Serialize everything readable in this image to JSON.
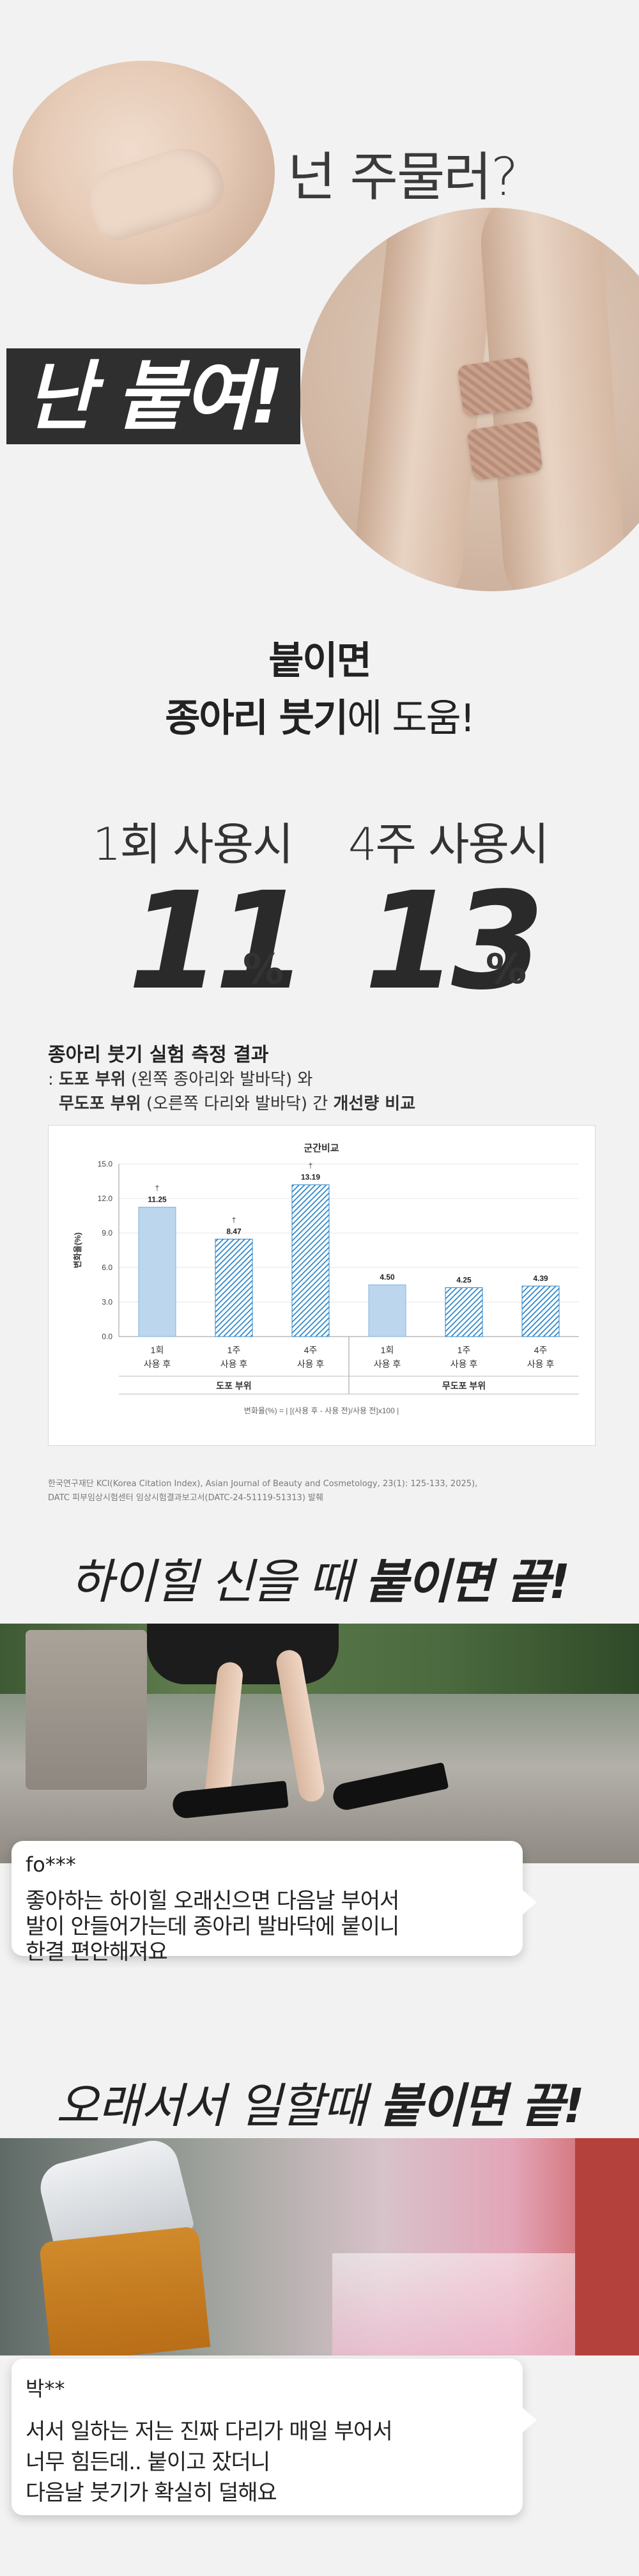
{
  "hero": {
    "question": "넌 주물러?",
    "answer": "난 붙여!"
  },
  "headline": {
    "line1": "붙이면",
    "line2_bold": "종아리 붓기",
    "line2_light": "에 도움!"
  },
  "stats": [
    {
      "label": "1회 사용시",
      "value": "11",
      "unit": "%"
    },
    {
      "label": "4주 사용시",
      "value": "13",
      "unit": "%"
    }
  ],
  "chart_section": {
    "title": "종아리 붓기 실험 측정 결과",
    "sub1_prefix": ": ",
    "sub1_bold": "도포 부위",
    "sub1_rest": " (왼쪽 종아리와 발바닥) 와",
    "sub2_bold": "무도포 부위",
    "sub2_rest": " (오른쪽 다리와 발바닥) 간 ",
    "sub2_end": "개선량 비교",
    "formula": "변화율(%) = | [(사용 후 - 사용 전)/사용 전]x100 |",
    "footnote1": "한국연구재단 KCI(Korea Citation Index), Asian Journal of Beauty and Cosmetology, 23(1): 125-133, 2025),",
    "footnote2": "DATC 피부임상시험센터 임상시험결과보고서(DATC-24-51119-51313) 발췌"
  },
  "chart_data": {
    "type": "bar",
    "title": "군간비교",
    "ylabel": "변화율(%)",
    "ylim": [
      0,
      15
    ],
    "yticks": [
      "0.0",
      "3.0",
      "6.0",
      "9.0",
      "12.0",
      "15.0"
    ],
    "categories": [
      "1회\n사용 후",
      "1주\n사용 후",
      "4주\n사용 후",
      "1회\n사용 후",
      "1주\n사용 후",
      "4주\n사용 후"
    ],
    "groups": [
      "도포 부위",
      "무도포 부위"
    ],
    "values": [
      11.25,
      8.47,
      13.19,
      4.5,
      4.25,
      4.39
    ],
    "labels": [
      "11.25",
      "8.47",
      "13.19",
      "4.50",
      "4.25",
      "4.39"
    ],
    "markers": [
      "†",
      "†",
      "†",
      "",
      "",
      ""
    ],
    "colors": {
      "solid": "#bcd6ee",
      "hatch": "#2c86c8",
      "border": "#7fb2de"
    }
  },
  "scene1": {
    "title_light": "하이힐 신을 때 ",
    "title_bold": "붙이면 끝!",
    "review_user": "fo***",
    "review_lines": [
      "좋아하는 하이힐 오래신으면 다음날 부어서",
      "발이 안들어가는데 종아리 발바닥에 붙이니",
      "한결 편안해져요"
    ]
  },
  "scene2": {
    "title_light": "오래서서 일할때 ",
    "title_bold": "붙이면 끝!",
    "review_user": "박**",
    "review_lines": [
      "서서 일하는 저는 진짜 다리가 매일 부어서",
      "너무 힘든데.. 붙이고 잤더니",
      "다음날 붓기가 확실히 덜해요"
    ]
  }
}
